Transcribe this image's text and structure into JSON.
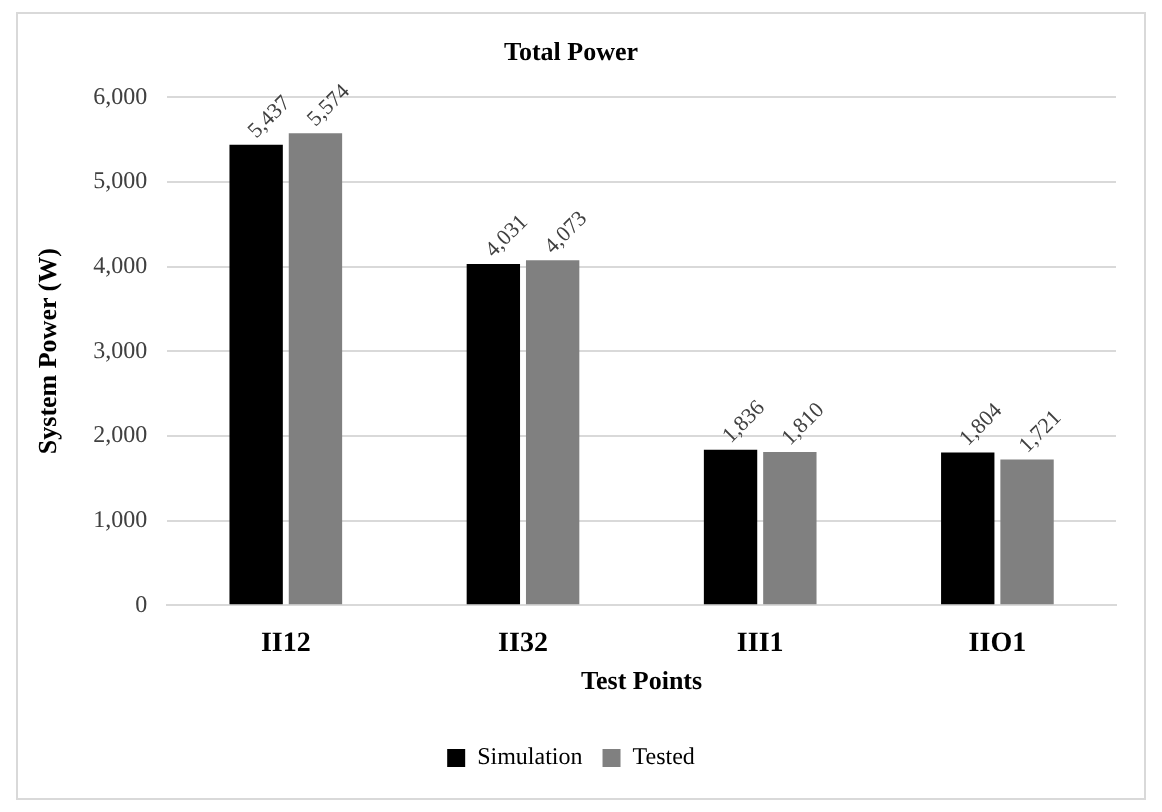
{
  "chart_data": {
    "type": "bar",
    "title": "Total Power",
    "xlabel": "Test Points",
    "ylabel": "System Power (W)",
    "categories": [
      "II12",
      "II32",
      "III1",
      "IIO1"
    ],
    "series": [
      {
        "name": "Simulation",
        "color": "#000000",
        "values": [
          5437,
          4031,
          1836,
          1804
        ],
        "value_labels": [
          "5,437",
          "4,031",
          "1,836",
          "1,804"
        ]
      },
      {
        "name": "Tested",
        "color": "#808080",
        "values": [
          5574,
          4073,
          1810,
          1721
        ],
        "value_labels": [
          "5,574",
          "4,073",
          "1,810",
          "1,721"
        ]
      }
    ],
    "ylim": [
      0,
      6000
    ],
    "yticks": [
      {
        "value": 0,
        "label": "0"
      },
      {
        "value": 1000,
        "label": "1,000"
      },
      {
        "value": 2000,
        "label": "2,000"
      },
      {
        "value": 3000,
        "label": "3,000"
      },
      {
        "value": 4000,
        "label": "4,000"
      },
      {
        "value": 5000,
        "label": "5,000"
      },
      {
        "value": 6000,
        "label": "6,000"
      }
    ],
    "grid": "y",
    "legend": "bottom"
  }
}
